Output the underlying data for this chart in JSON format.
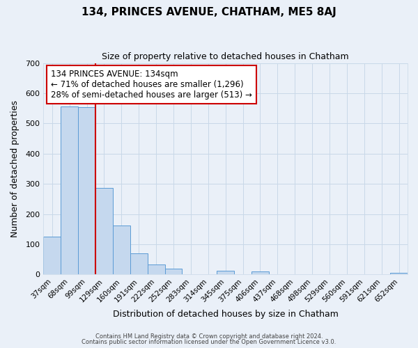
{
  "title": "134, PRINCES AVENUE, CHATHAM, ME5 8AJ",
  "subtitle": "Size of property relative to detached houses in Chatham",
  "xlabel": "Distribution of detached houses by size in Chatham",
  "ylabel": "Number of detached properties",
  "bar_labels": [
    "37sqm",
    "68sqm",
    "99sqm",
    "129sqm",
    "160sqm",
    "191sqm",
    "222sqm",
    "252sqm",
    "283sqm",
    "314sqm",
    "345sqm",
    "375sqm",
    "406sqm",
    "437sqm",
    "468sqm",
    "498sqm",
    "529sqm",
    "560sqm",
    "591sqm",
    "621sqm",
    "652sqm"
  ],
  "bar_values": [
    125,
    557,
    553,
    287,
    163,
    70,
    33,
    20,
    0,
    0,
    13,
    0,
    10,
    0,
    0,
    0,
    0,
    0,
    0,
    0,
    5
  ],
  "bar_color": "#c5d8ee",
  "bar_edge_color": "#5b9bd5",
  "property_line_color": "#cc0000",
  "annotation_text": "134 PRINCES AVENUE: 134sqm\n← 71% of detached houses are smaller (1,296)\n28% of semi-detached houses are larger (513) →",
  "annotation_box_color": "#ffffff",
  "annotation_box_edge_color": "#cc0000",
  "ylim": [
    0,
    700
  ],
  "yticks": [
    0,
    100,
    200,
    300,
    400,
    500,
    600,
    700
  ],
  "grid_color": "#c8d8e8",
  "footer_line1": "Contains HM Land Registry data © Crown copyright and database right 2024.",
  "footer_line2": "Contains public sector information licensed under the Open Government Licence v3.0.",
  "bg_color": "#eaf0f8",
  "plot_bg_color": "#eaf0f8"
}
